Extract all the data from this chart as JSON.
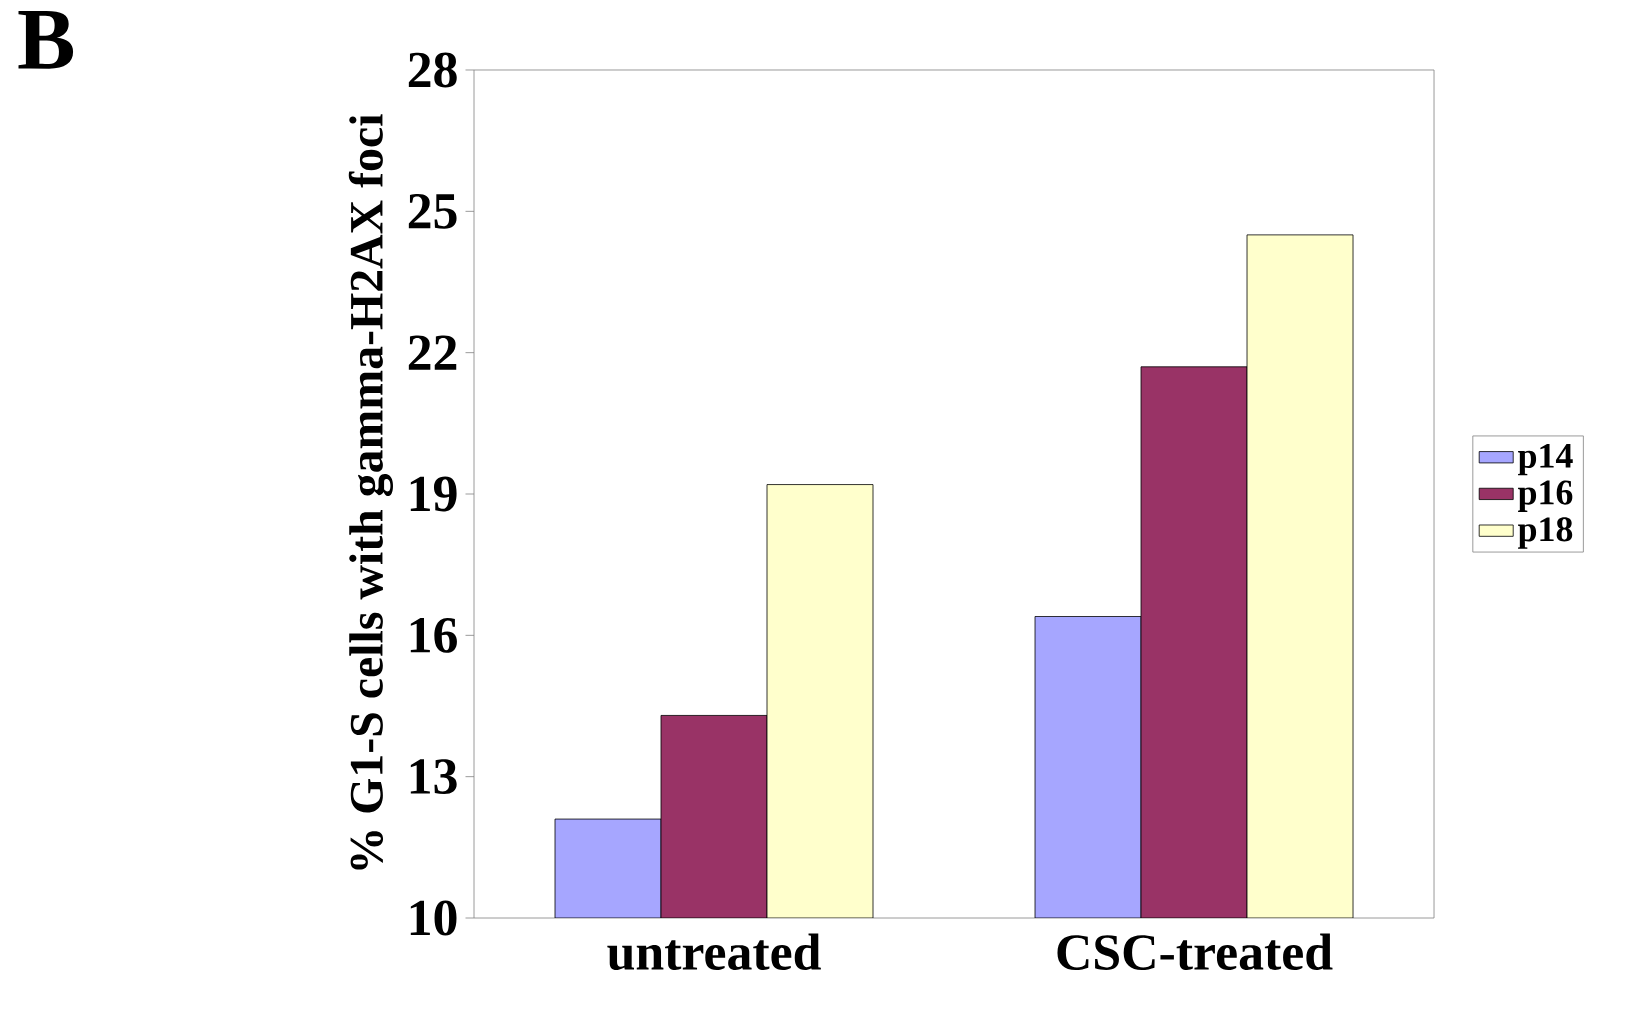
{
  "chart_data": {
    "type": "bar",
    "ylabel": "% G1-S cells with gamma-H2AX foci",
    "annotations": [
      "B"
    ],
    "categories": [
      "untreated",
      "CSC-treated"
    ],
    "series": [
      {
        "name": "p14",
        "color": "#a6a6ff",
        "values": [
          12.1,
          16.4
        ]
      },
      {
        "name": "p16",
        "color": "#993366",
        "values": [
          14.3,
          21.7
        ]
      },
      {
        "name": "p18",
        "color": "#ffffcc",
        "values": [
          19.2,
          24.5
        ]
      }
    ],
    "ylim": [
      10,
      28
    ],
    "yticks": [
      10,
      13,
      16,
      19,
      22,
      25,
      28
    ],
    "grid": false,
    "legend": "right"
  }
}
